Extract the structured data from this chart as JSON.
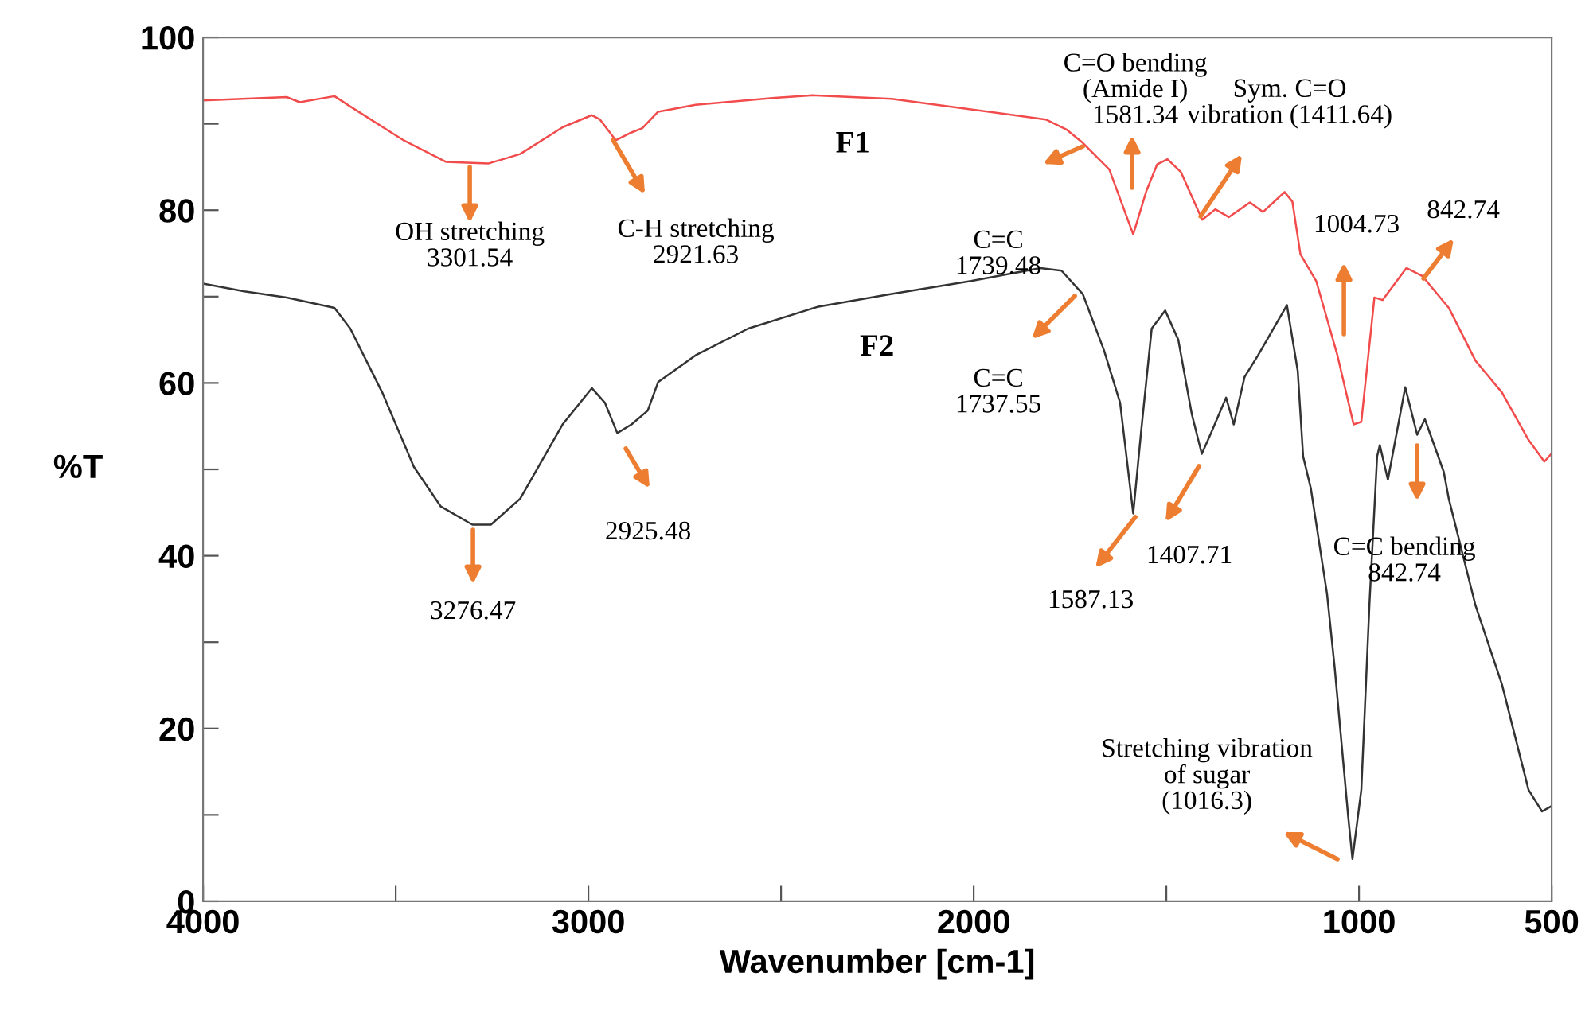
{
  "chart_data": {
    "type": "line",
    "xlabel": "Wavenumber [cm-1]",
    "ylabel": "%T",
    "xlim": [
      4000,
      500
    ],
    "ylim": [
      0,
      100
    ],
    "xticks": [
      4000,
      {
        "value": 3500,
        "label": null
      },
      3000,
      {
        "value": 2500,
        "label": null
      },
      2000,
      {
        "value": 1500,
        "label": null
      },
      1000,
      500
    ],
    "yticks": [
      0,
      {
        "value": 10,
        "label": null
      },
      20,
      {
        "value": 30,
        "label": null
      },
      40,
      {
        "value": 50,
        "label": null
      },
      60,
      {
        "value": 70,
        "label": null
      },
      80,
      {
        "value": 90,
        "label": null
      },
      100
    ],
    "grid": false,
    "legend": false,
    "marker": "none",
    "line_style": "solid",
    "series": [
      {
        "name": "F1",
        "color": "#f24b4b",
        "x": [
          4000,
          3783,
          3749,
          3659,
          3618,
          3480,
          3370,
          3260,
          3177,
          3067,
          2991,
          2970,
          2929,
          2888,
          2860,
          2819,
          2722,
          2516,
          2420,
          2213,
          1813,
          1758,
          1717,
          1648,
          1586,
          1552,
          1524,
          1497,
          1462,
          1407,
          1373,
          1338,
          1283,
          1249,
          1193,
          1173,
          1152,
          1111,
          1056,
          1014,
          994,
          960,
          939,
          877,
          836,
          767,
          698,
          629,
          560,
          519,
          501
        ],
        "values": [
          92.7,
          93.1,
          92.5,
          93.2,
          92.0,
          88.1,
          85.6,
          85.4,
          86.5,
          89.6,
          91.0,
          90.5,
          88.1,
          89.0,
          89.5,
          91.4,
          92.2,
          93.0,
          93.3,
          92.9,
          90.5,
          89.3,
          87.8,
          84.7,
          77.2,
          82.2,
          85.3,
          85.9,
          84.4,
          78.9,
          80.1,
          79.2,
          80.9,
          79.8,
          82.1,
          81.0,
          74.9,
          71.8,
          63.2,
          55.2,
          55.5,
          69.9,
          69.6,
          73.3,
          72.4,
          68.7,
          62.6,
          58.9,
          53.4,
          50.9,
          51.8
        ]
      },
      {
        "name": "F2",
        "color": "#333333",
        "x": [
          4000,
          3893,
          3783,
          3659,
          3618,
          3535,
          3453,
          3383,
          3301,
          3253,
          3177,
          3067,
          2991,
          2957,
          2925,
          2888,
          2846,
          2819,
          2722,
          2585,
          2406,
          2213,
          2007,
          1827,
          1772,
          1717,
          1662,
          1620,
          1586,
          1565,
          1538,
          1503,
          1469,
          1434,
          1408,
          1386,
          1345,
          1325,
          1297,
          1262,
          1187,
          1159,
          1145,
          1125,
          1083,
          1063,
          1028,
          1017,
          994,
          973,
          953,
          946,
          925,
          880,
          849,
          829,
          780,
          767,
          698,
          629,
          560,
          525,
          501
        ],
        "values": [
          71.5,
          70.6,
          69.9,
          68.7,
          66.3,
          58.9,
          50.3,
          45.7,
          43.6,
          43.6,
          46.6,
          55.2,
          59.4,
          57.7,
          54.2,
          55.2,
          56.8,
          60.1,
          63.2,
          66.3,
          68.8,
          70.3,
          71.8,
          73.3,
          73.0,
          70.3,
          63.8,
          57.7,
          44.9,
          54.6,
          66.3,
          68.4,
          65.0,
          56.4,
          51.8,
          54.0,
          58.3,
          55.2,
          60.7,
          63.2,
          69.0,
          61.4,
          51.5,
          47.8,
          35.6,
          27.0,
          9.8,
          4.9,
          12.9,
          34.3,
          51.5,
          52.8,
          48.8,
          59.5,
          54.0,
          55.8,
          49.7,
          46.6,
          34.3,
          25.1,
          12.9,
          10.4,
          11.0
        ]
      }
    ],
    "annotations": [
      "OH stretching\n3301.54",
      "C-H stretching\n2921.63",
      "C=C\n1739.48",
      "C=O bending\n(Amide I)\n1581.34",
      "Sym. C=O\nvibration (1411.64)",
      "1004.73",
      "842.74",
      "C=C\n1737.55",
      "3276.47",
      "2925.48",
      "1587.13",
      "1407.71",
      "C=C bending\n842.74",
      "Stretching vibration\nof sugar\n(1016.3)"
    ]
  }
}
